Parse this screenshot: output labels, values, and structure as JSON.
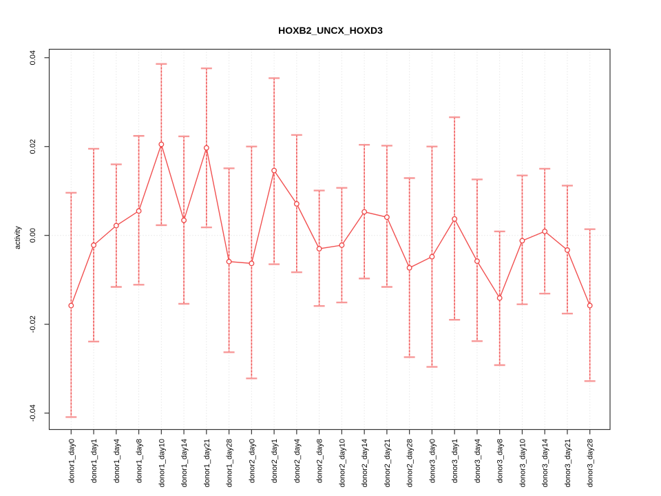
{
  "figure": {
    "title": "HOXB2_UNCX_HOXD3",
    "y_axis_label": "activity"
  },
  "chart_data": {
    "type": "line",
    "title": "HOXB2_UNCX_HOXD3",
    "xlabel": "",
    "ylabel": "activity",
    "marker": "open-circle",
    "error_bars": true,
    "legend_position": "none",
    "categories": [
      "donor1_day0",
      "donor1_day1",
      "donor1_day4",
      "donor1_day8",
      "donor1_day10",
      "donor1_day14",
      "donor1_day21",
      "donor1_day28",
      "donor2_day0",
      "donor2_day1",
      "donor2_day4",
      "donor2_day8",
      "donor2_day10",
      "donor2_day14",
      "donor2_day21",
      "donor2_day28",
      "donor3_day0",
      "donor3_day1",
      "donor3_day4",
      "donor3_day8",
      "donor3_day10",
      "donor3_day14",
      "donor3_day21",
      "donor3_day28"
    ],
    "series": [
      {
        "name": "activity",
        "values": [
          -0.0158,
          -0.0022,
          0.0022,
          0.0055,
          0.0205,
          0.0034,
          0.0197,
          -0.0059,
          -0.0063,
          0.0146,
          0.0071,
          -0.003,
          -0.0022,
          0.0053,
          0.0041,
          -0.0073,
          -0.0048,
          0.0037,
          -0.0058,
          -0.0141,
          -0.0012,
          0.0009,
          -0.0033,
          -0.0158
        ],
        "error_low": [
          -0.0409,
          -0.0239,
          -0.0116,
          -0.0111,
          0.0023,
          -0.0154,
          0.0018,
          -0.0263,
          -0.0322,
          -0.0065,
          -0.0083,
          -0.0159,
          -0.0151,
          -0.0097,
          -0.0116,
          -0.0274,
          -0.0296,
          -0.019,
          -0.0238,
          -0.0292,
          -0.0155,
          -0.0131,
          -0.0176,
          -0.0328
        ],
        "error_high": [
          0.0096,
          0.0195,
          0.016,
          0.0224,
          0.0386,
          0.0223,
          0.0376,
          0.0151,
          0.02,
          0.0354,
          0.0226,
          0.0101,
          0.0107,
          0.0204,
          0.0202,
          0.0129,
          0.02,
          0.0266,
          0.0126,
          0.0009,
          0.0135,
          0.015,
          0.0112,
          0.0014
        ]
      }
    ],
    "y_ticks": {
      "values": [
        -0.04,
        -0.02,
        0.0,
        0.02,
        0.04
      ],
      "labels": [
        "-0.04",
        "-0.02",
        "0.00",
        "0.02",
        "0.04"
      ]
    },
    "ylim": [
      -0.0437,
      0.0419
    ],
    "grid": {
      "vertical": "dotted line at every category",
      "horizontal": "dotted line at y=0 only"
    },
    "colors": {
      "series_line": "#f15050",
      "marker": "#ee4444",
      "error_bar_line": "#ef5555",
      "error_bar_underlay": "#f9aaaa",
      "error_bar_cap": "#f79898",
      "grid": "#d9d9d9",
      "frame": "#333333",
      "text": "#000000",
      "background": "#ffffff"
    }
  }
}
